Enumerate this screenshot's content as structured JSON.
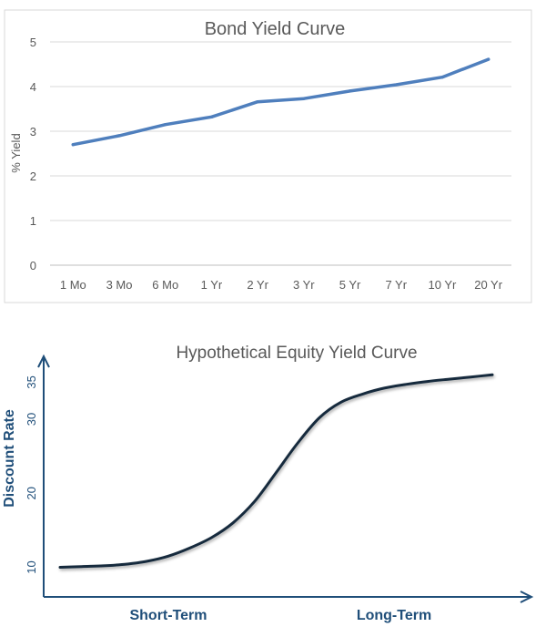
{
  "chart_data": [
    {
      "type": "line",
      "title": "Bond Yield Curve",
      "xlabel": "",
      "ylabel": "% Yield",
      "categories": [
        "1 Mo",
        "3 Mo",
        "6 Mo",
        "1 Yr",
        "2 Yr",
        "3 Yr",
        "5 Yr",
        "7 Yr",
        "10 Yr",
        "20 Yr"
      ],
      "series": [
        {
          "values": [
            2.7,
            2.9,
            3.15,
            3.32,
            3.66,
            3.73,
            3.9,
            4.04,
            4.21,
            4.61
          ]
        }
      ],
      "ylim": [
        0,
        5
      ],
      "yticks": [
        0,
        1,
        2,
        3,
        4,
        5
      ],
      "grid": true,
      "legend": "none",
      "line_color": "#4f7fbd"
    },
    {
      "type": "line",
      "title": "Hypothetical Equity Yield Curve",
      "xlabel_left": "Short-Term",
      "xlabel_right": "Long-Term",
      "ylabel": "Discount Rate",
      "yticks": [
        10,
        20,
        30,
        35
      ],
      "ylim": [
        6,
        38
      ],
      "grid": false,
      "legend": "none",
      "line_color": "#142a3c",
      "axis_color": "#1f4e79",
      "series": [
        {
          "x": [
            0,
            0.05,
            0.1,
            0.15,
            0.2,
            0.25,
            0.3,
            0.35,
            0.4,
            0.45,
            0.5,
            0.55,
            0.6,
            0.65,
            0.7,
            0.75,
            0.8,
            0.85,
            0.9,
            0.95,
            1.0
          ],
          "values": [
            10.0,
            10.1,
            10.2,
            10.4,
            10.8,
            11.5,
            12.6,
            14.0,
            16.0,
            18.9,
            22.8,
            26.8,
            30.2,
            32.3,
            33.4,
            34.2,
            34.7,
            35.1,
            35.4,
            35.7,
            36.0
          ]
        }
      ]
    }
  ]
}
